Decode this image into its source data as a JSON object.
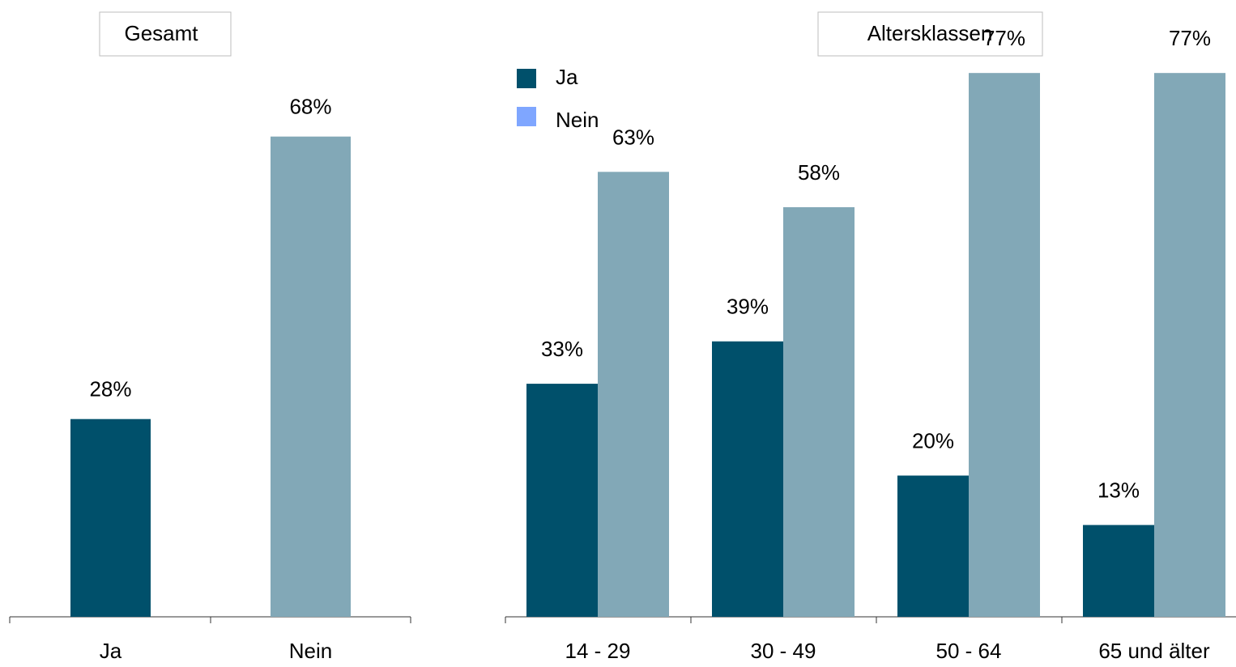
{
  "colors": {
    "ja": "#00506b",
    "nein": "#82a8b7",
    "legend_nein": "#7fa6ff",
    "axis": "#333333",
    "text": "#000000",
    "box_border": "#bdbdbd"
  },
  "chart_data": [
    {
      "type": "bar",
      "title": "Gesamt",
      "categories": [
        "Ja",
        "Nein"
      ],
      "values": [
        28,
        68
      ],
      "labels": [
        "28%",
        "68%"
      ],
      "ylim": [
        0,
        100
      ],
      "grid": false
    },
    {
      "type": "bar",
      "title": "Altersklassen",
      "categories": [
        "14 - 29",
        "30 - 49",
        "50 - 64",
        "65 und älter"
      ],
      "series": [
        {
          "name": "Ja",
          "values": [
            33,
            39,
            20,
            13
          ],
          "labels": [
            "33%",
            "39%",
            "20%",
            "13%"
          ]
        },
        {
          "name": "Nein",
          "values": [
            63,
            58,
            77,
            77
          ],
          "labels": [
            "63%",
            "58%",
            "77%",
            "77%"
          ]
        }
      ],
      "ylim": [
        0,
        100
      ],
      "legend": "top-left",
      "grid": false
    }
  ]
}
